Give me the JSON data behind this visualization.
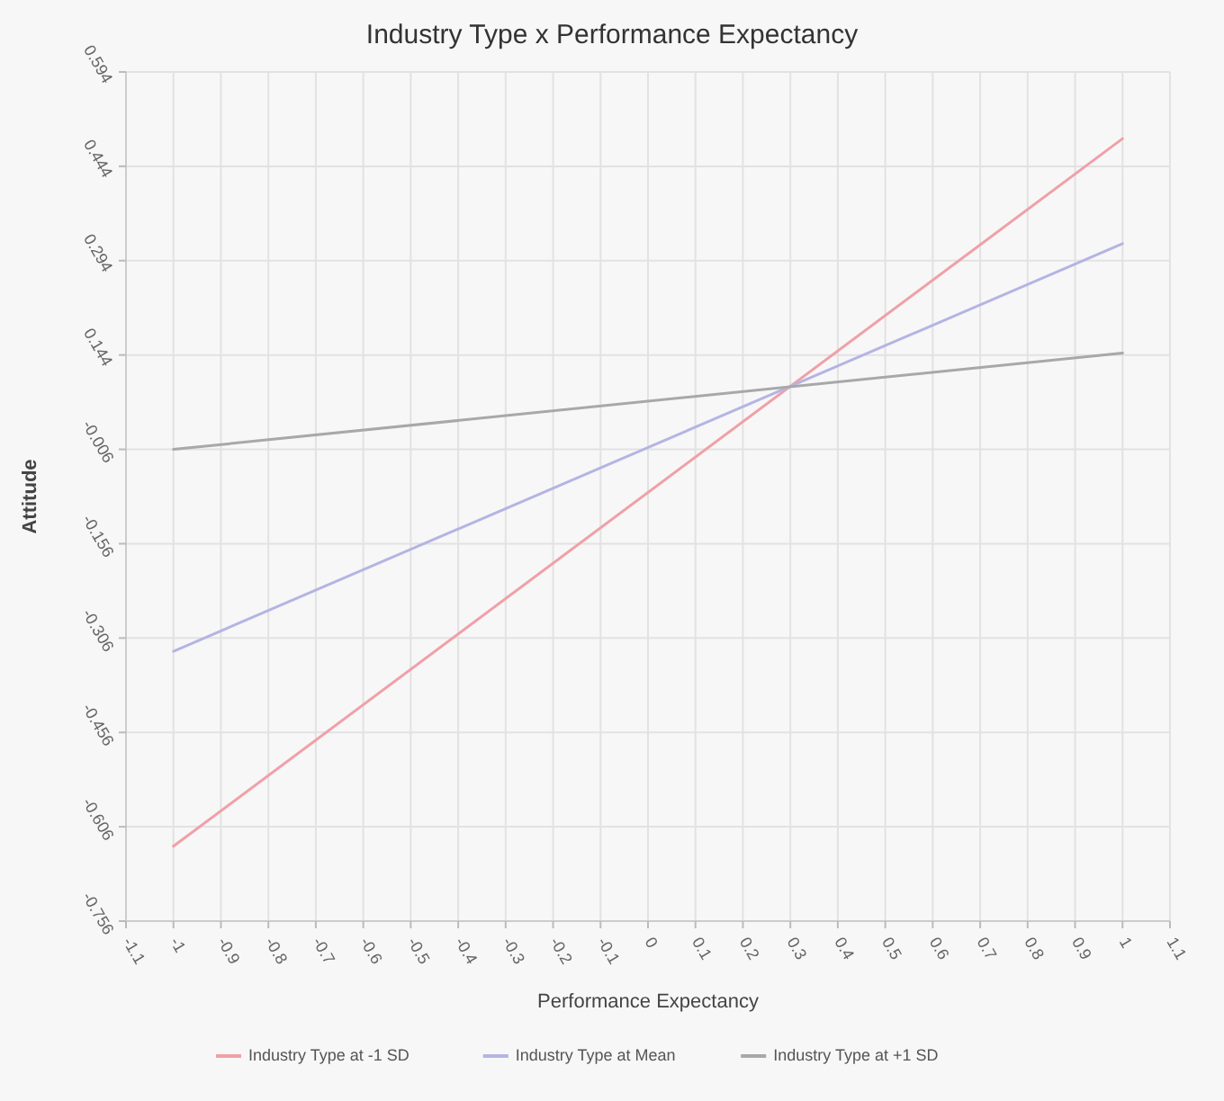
{
  "chart_data": {
    "type": "line",
    "title": "Industry Type x Performance Expectancy",
    "xlabel": "Performance Expectancy",
    "ylabel": "Attitude",
    "x": [
      -1,
      1
    ],
    "series": [
      {
        "name": "Industry Type at -1 SD",
        "color": "#f0a0a8",
        "values": [
          -0.637,
          0.488
        ]
      },
      {
        "name": "Industry Type at Mean",
        "color": "#b4b4e4",
        "values": [
          -0.327,
          0.321
        ]
      },
      {
        "name": "Industry Type at +1 SD",
        "color": "#a8a8a8",
        "values": [
          -0.006,
          0.147
        ]
      }
    ],
    "xlim": [
      -1.1,
      1.1
    ],
    "xticks": [
      -1.1,
      -1,
      -0.9,
      -0.8,
      -0.7,
      -0.6,
      -0.5,
      -0.4,
      -0.3,
      -0.2,
      -0.1,
      0,
      0.1,
      0.2,
      0.3,
      0.4,
      0.5,
      0.6,
      0.7,
      0.8,
      0.9,
      1,
      1.1
    ],
    "ylim": [
      -0.756,
      0.594
    ],
    "yticks": [
      -0.756,
      -0.606,
      -0.456,
      -0.306,
      -0.156,
      -0.006,
      0.144,
      0.294,
      0.444,
      0.594
    ],
    "grid": true,
    "legend": "bottom",
    "marker": "none",
    "line_style": "solid"
  }
}
